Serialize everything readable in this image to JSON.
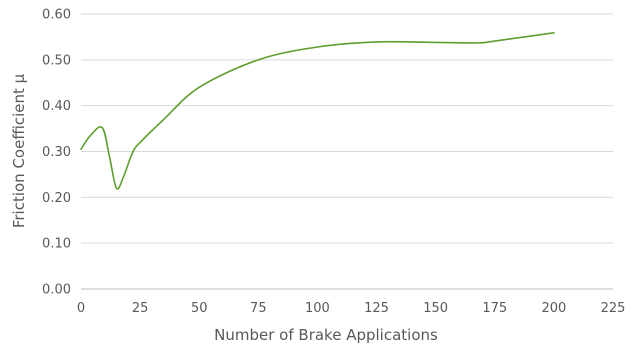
{
  "chart_data": {
    "type": "line",
    "title": "",
    "xlabel": "Number of Brake Applications",
    "ylabel": "Friction Coefficient μ",
    "xlim": [
      0,
      225
    ],
    "ylim": [
      0,
      0.6
    ],
    "x_ticks": [
      "0",
      "25",
      "50",
      "75",
      "100",
      "125",
      "150",
      "175",
      "200",
      "225"
    ],
    "y_ticks": [
      "0.00",
      "0.10",
      "0.20",
      "0.30",
      "0.40",
      "0.50",
      "0.60"
    ],
    "grid": "horizontal",
    "legend": "none",
    "series": [
      {
        "color": "#5c9e2e",
        "x": [
          0,
          4,
          9,
          12,
          15,
          18,
          22,
          26,
          35,
          50,
          75,
          100,
          125,
          150,
          168,
          175,
          200
        ],
        "y": [
          0.305,
          0.335,
          0.352,
          0.29,
          0.22,
          0.245,
          0.3,
          0.325,
          0.37,
          0.44,
          0.5,
          0.528,
          0.539,
          0.538,
          0.537,
          0.541,
          0.559
        ]
      }
    ]
  }
}
